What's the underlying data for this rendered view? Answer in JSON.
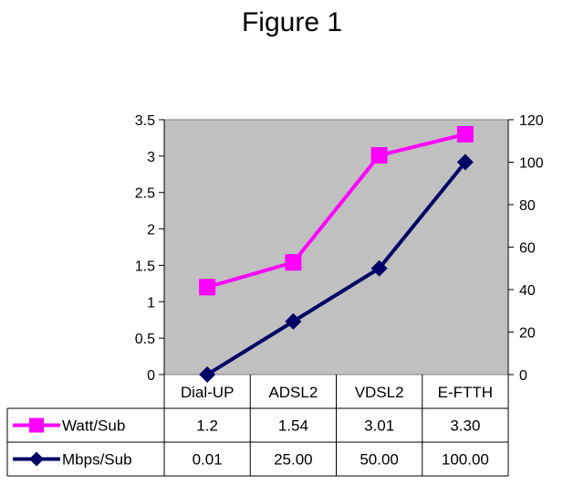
{
  "title": "Figure 1",
  "chart_data": {
    "type": "line",
    "title": "Figure 1",
    "categories": [
      "Dial-UP",
      "ADSL2",
      "VDSL2",
      "E-FTTH"
    ],
    "series": [
      {
        "name": "Watt/Sub",
        "axis": "left",
        "color": "#ff00ff",
        "marker": "square",
        "values": [
          1.2,
          1.54,
          3.01,
          3.3
        ],
        "labels": [
          "1.2",
          "1.54",
          "3.01",
          "3.30"
        ]
      },
      {
        "name": "Mbps/Sub",
        "axis": "right",
        "color": "#000066",
        "marker": "diamond",
        "values": [
          0.01,
          25,
          50,
          100
        ],
        "labels": [
          "0.01",
          "25.00",
          "50.00",
          "100.00"
        ]
      }
    ],
    "y_left": {
      "ylim": [
        0,
        3.5
      ],
      "ticks": [
        "0",
        "0.5",
        "1",
        "1.5",
        "2",
        "2.5",
        "3",
        "3.5"
      ]
    },
    "y_right": {
      "ylim": [
        0,
        120
      ],
      "ticks": [
        "0",
        "20",
        "40",
        "60",
        "80",
        "100",
        "120"
      ]
    },
    "plot_background": "#c0c0c0",
    "grid": false,
    "legend": "data-table"
  }
}
